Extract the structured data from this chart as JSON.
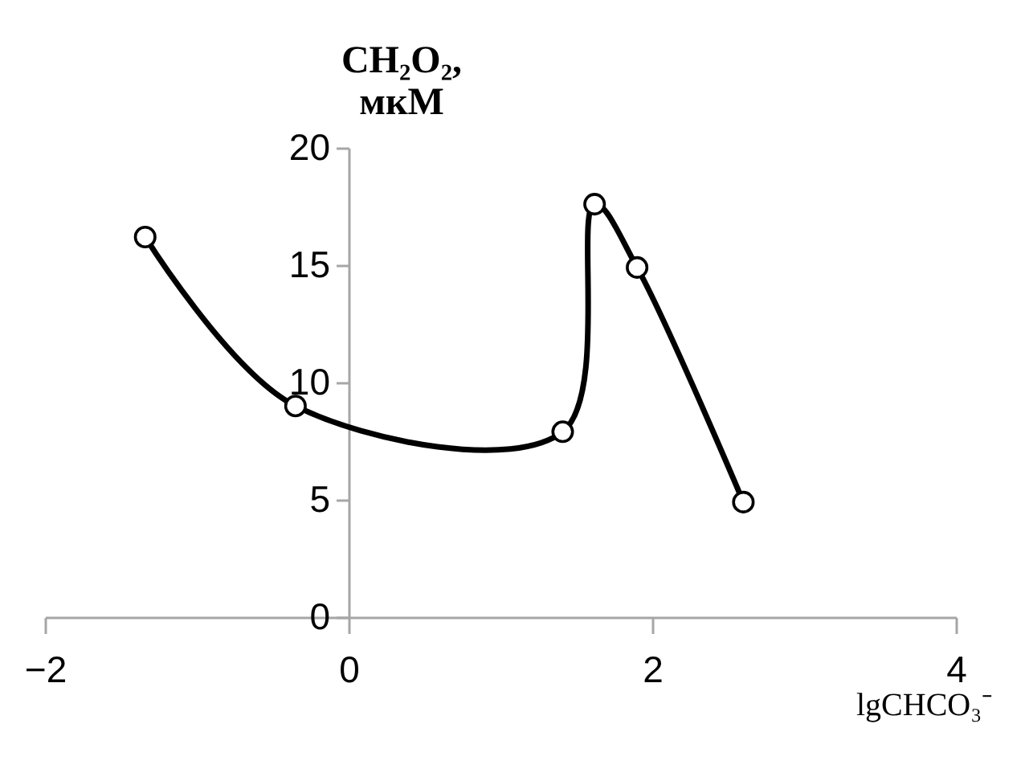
{
  "chart_data": {
    "type": "line",
    "xlabel": "lgCHCO₃⁻",
    "ylabel": "CH₂O₂,\nмкМ",
    "x": [
      -1.34,
      -0.35,
      1.41,
      1.62,
      1.9,
      2.6
    ],
    "series": [
      {
        "color": "#000000",
        "values": [
          16.2,
          9.0,
          7.9,
          17.6,
          14.9,
          4.9
        ]
      }
    ],
    "xlim": [
      -2,
      4
    ],
    "xticks": [
      -2,
      0,
      2,
      4
    ],
    "ylim": [
      0,
      20
    ],
    "yticks": [
      0,
      5,
      10,
      15,
      20
    ],
    "marker": "circle",
    "grid": false
  }
}
